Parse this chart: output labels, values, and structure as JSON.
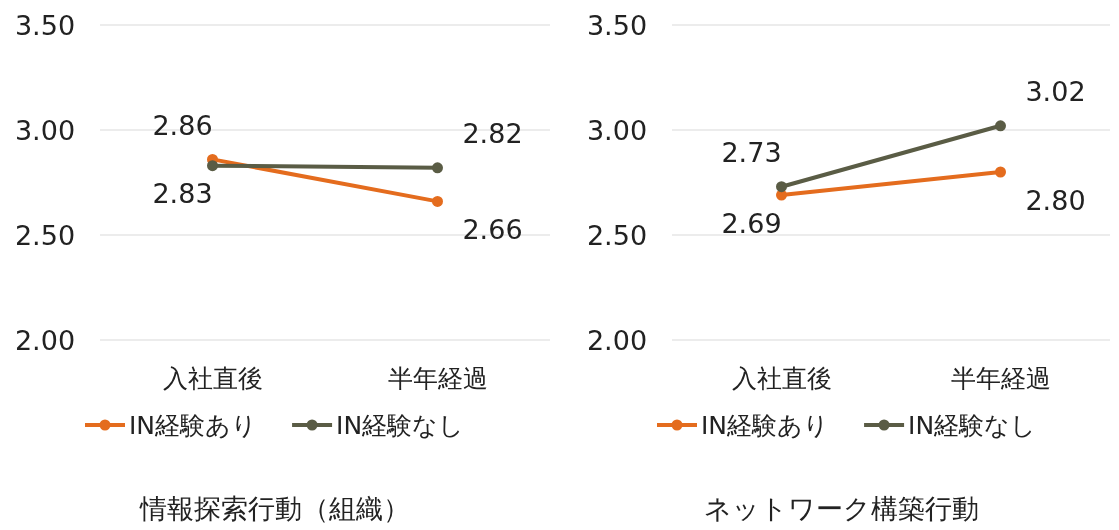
{
  "chart_data": [
    {
      "type": "line",
      "annotations": [
        "情報探索行動（組織）"
      ],
      "categories": [
        "入社直後",
        "半年経過"
      ],
      "series": [
        {
          "name": "IN経験あり",
          "color": "#e46c1e",
          "values": [
            2.86,
            2.66
          ]
        },
        {
          "name": "IN経験なし",
          "color": "#5a5c45",
          "values": [
            2.83,
            2.82
          ]
        }
      ],
      "ylim": [
        2.0,
        3.5
      ],
      "yticks": [
        {
          "value": 2.0,
          "label": "2.00"
        },
        {
          "value": 2.5,
          "label": "2.50"
        },
        {
          "value": 3.0,
          "label": "3.00"
        },
        {
          "value": 3.5,
          "label": "3.50"
        }
      ],
      "grid": "y",
      "legend": "bottom",
      "marker": "circle",
      "line_style": "solid",
      "data_labels": true
    },
    {
      "type": "line",
      "annotations": [
        "ネットワーク構築行動"
      ],
      "categories": [
        "入社直後",
        "半年経過"
      ],
      "series": [
        {
          "name": "IN経験あり",
          "color": "#e46c1e",
          "values": [
            2.69,
            2.8
          ],
          "value_labels": [
            "2.69",
            "2.80"
          ]
        },
        {
          "name": "IN経験なし",
          "color": "#5a5c45",
          "values": [
            2.73,
            3.02
          ]
        }
      ],
      "ylim": [
        2.0,
        3.5
      ],
      "yticks": [
        {
          "value": 2.0,
          "label": "2.00"
        },
        {
          "value": 2.5,
          "label": "2.50"
        },
        {
          "value": 3.0,
          "label": "3.00"
        },
        {
          "value": 3.5,
          "label": "3.50"
        }
      ],
      "grid": "y",
      "legend": "bottom",
      "marker": "circle",
      "line_style": "solid",
      "data_labels": true
    }
  ]
}
